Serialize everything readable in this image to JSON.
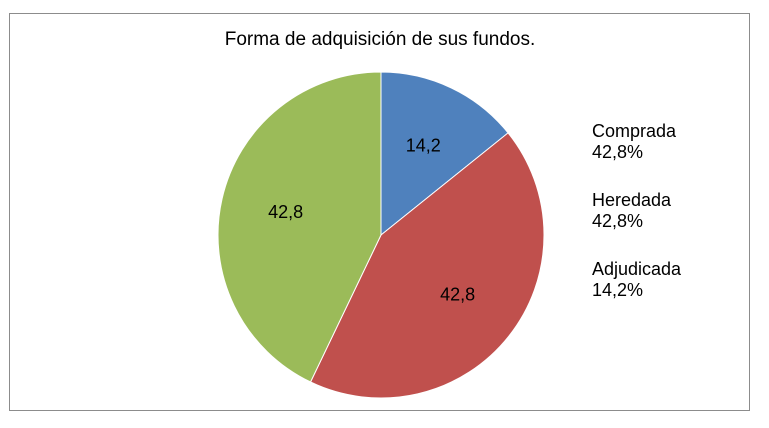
{
  "chart_data": {
    "type": "pie",
    "title": "Forma de adquisición de sus fundos.",
    "slices": [
      {
        "label": "Adjudicada",
        "value": 14.2,
        "data_label": "14,2",
        "legend_pct": "14,2%",
        "color": "#4f81bd"
      },
      {
        "label": "Comprada",
        "value": 42.8,
        "data_label": "42,8",
        "legend_pct": "42,8%",
        "color": "#c0504d"
      },
      {
        "label": "Heredada",
        "value": 42.8,
        "data_label": "42,8",
        "legend_pct": "42,8%",
        "color": "#9bbb59"
      }
    ],
    "legend_order": [
      1,
      2,
      0
    ],
    "legend_placement": "right"
  }
}
